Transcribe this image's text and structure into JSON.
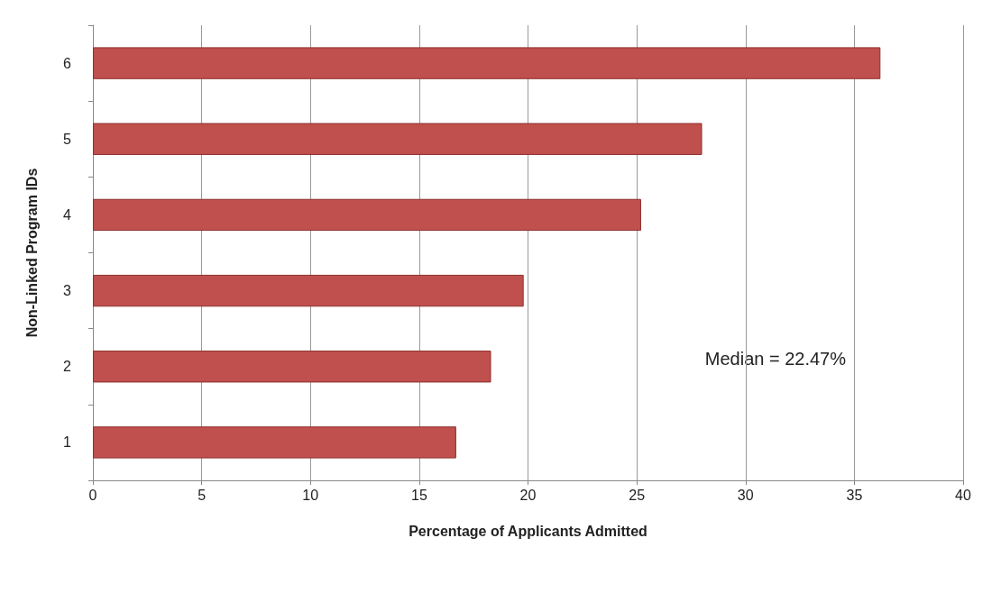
{
  "chart_data": {
    "type": "bar",
    "orientation": "horizontal",
    "categories": [
      "6",
      "5",
      "4",
      "3",
      "2",
      "1"
    ],
    "values": [
      36.2,
      28.0,
      25.2,
      19.8,
      18.3,
      16.7
    ],
    "color": "#c0504d",
    "xlim": [
      0,
      40
    ],
    "xticks": [
      0,
      5,
      10,
      15,
      20,
      25,
      30,
      35,
      40
    ],
    "xlabel": "Percentage of Applicants Admitted",
    "ylabel": "Non-Linked Program IDs",
    "annotations": [
      "Median = 22.47%"
    ],
    "grid": "x"
  }
}
